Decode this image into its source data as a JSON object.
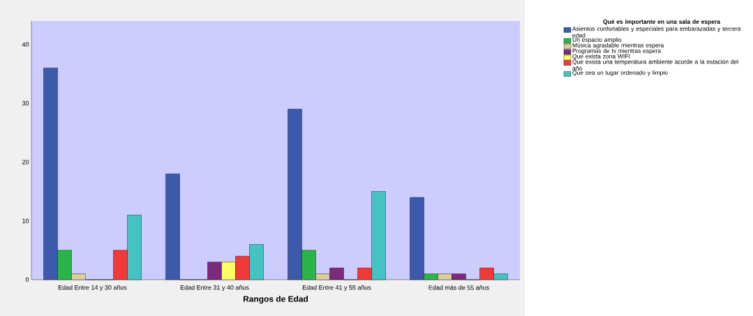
{
  "chart_data": {
    "type": "bar",
    "xlabel": "Rangos de Edad",
    "legend_title": "Qué es importante en una sala de espera",
    "categories": [
      "Edad Entre 14 y 30 años",
      "Edad Entre 31 y 40 años",
      "Edad Entre 41 y 55 años",
      "Edad más de 55 años"
    ],
    "series": [
      {
        "name": "Asientos confortables y especiales para embarazadas y tercera edad",
        "color": "#3d59ab",
        "values": [
          36,
          18,
          29,
          14
        ]
      },
      {
        "name": "Un espacio amplio",
        "color": "#2bb44a",
        "values": [
          5,
          0,
          5,
          1
        ]
      },
      {
        "name": "Música agradable mientras espera",
        "color": "#d9cfa0",
        "values": [
          1,
          0,
          1,
          1
        ]
      },
      {
        "name": "Programas de tv mientras espera",
        "color": "#7b2a7e",
        "values": [
          0,
          3,
          2,
          1
        ]
      },
      {
        "name": "Que exista zona WIFI",
        "color": "#ffff66",
        "values": [
          0,
          3,
          0,
          0
        ]
      },
      {
        "name": "Que exista una temperatura ambiente acorde a la estación del año",
        "color": "#f03a3a",
        "values": [
          5,
          4,
          2,
          2
        ]
      },
      {
        "name": "Que sea un lugar ordenado y limpio",
        "color": "#45c2c2",
        "values": [
          11,
          6,
          15,
          1
        ]
      }
    ],
    "ylim": [
      0,
      44
    ],
    "yticks": [
      0,
      10,
      20,
      30,
      40
    ],
    "grid": false,
    "legend": "right"
  }
}
